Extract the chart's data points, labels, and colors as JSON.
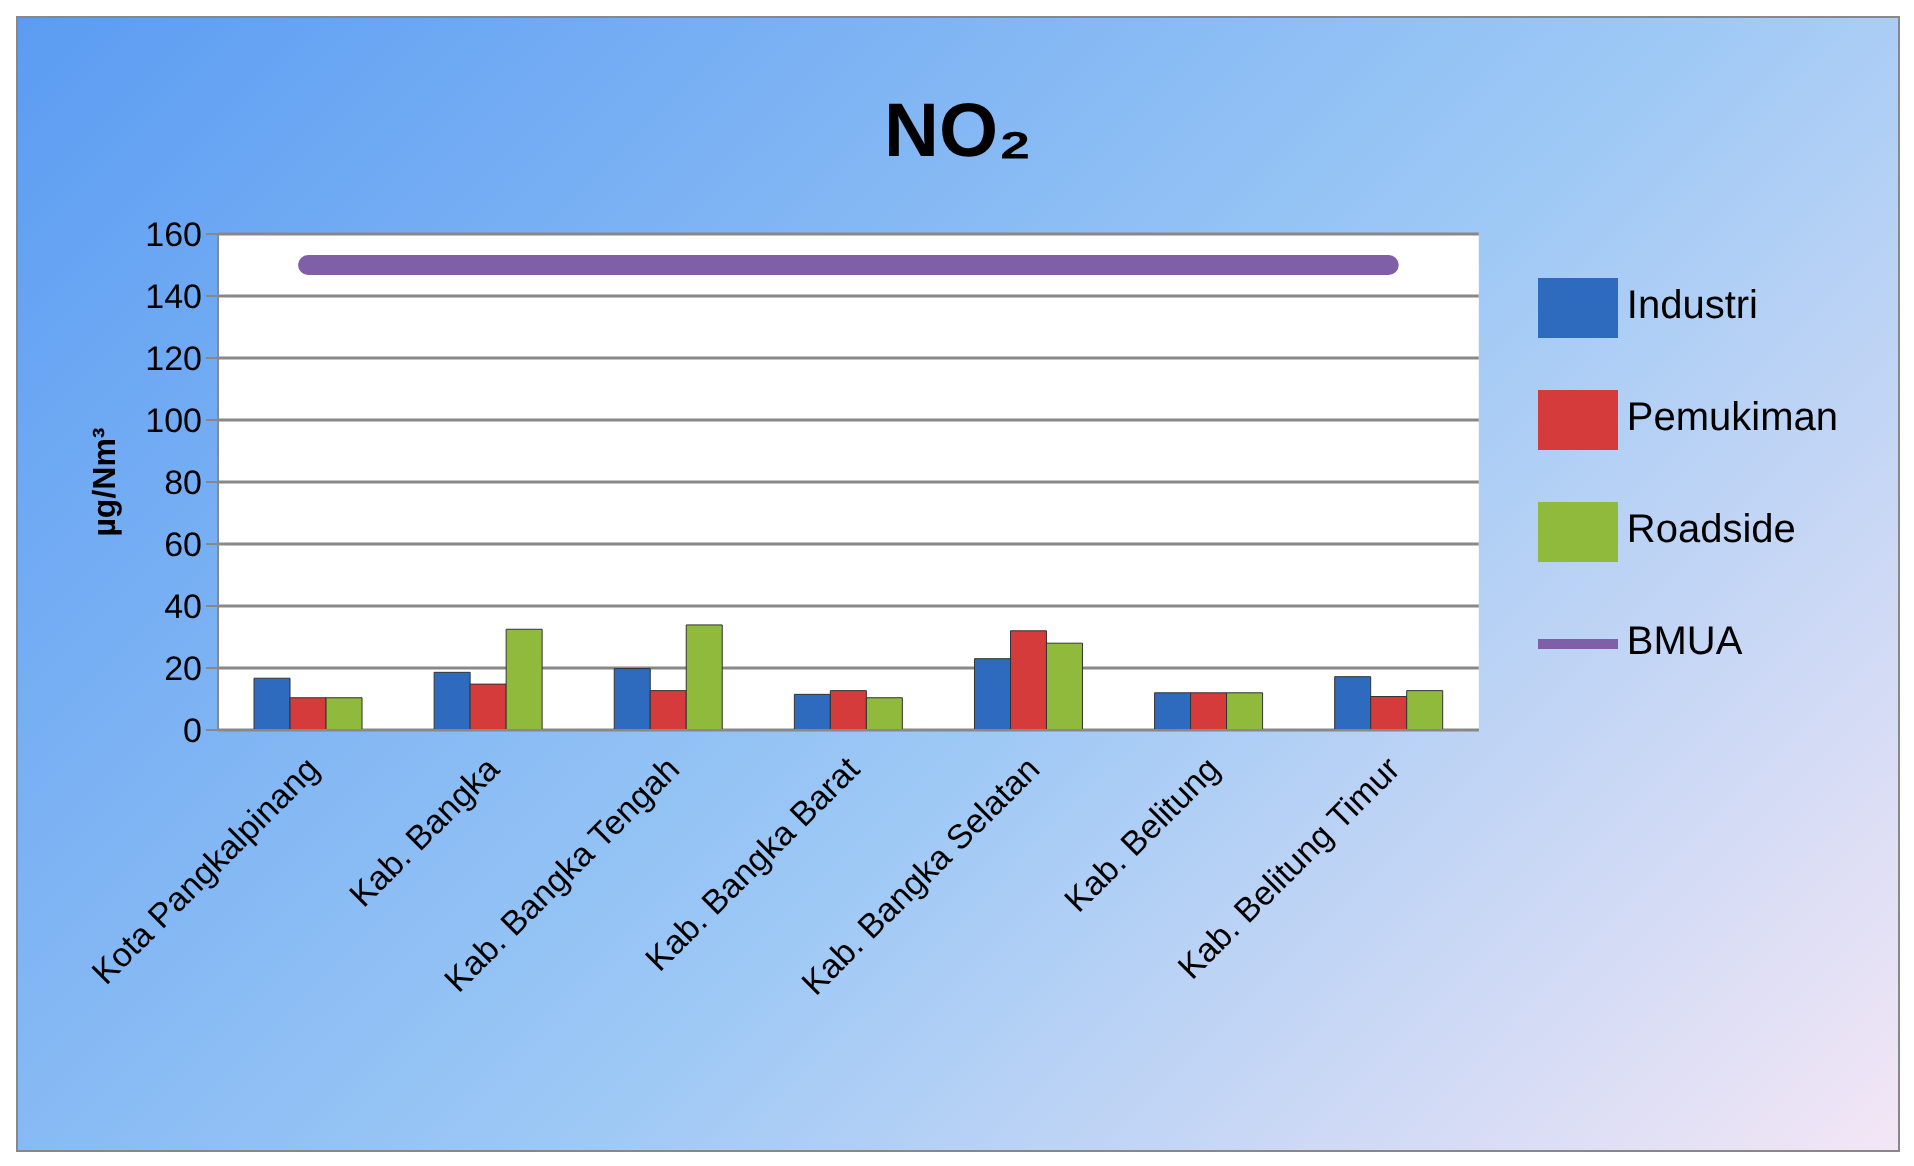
{
  "chart_data": {
    "type": "bar",
    "title": "NO₂",
    "ylabel": "µg/Nm³",
    "categories": [
      "Kota Pangkalpinang",
      "Kab. Bangka",
      "Kab. Bangka Tengah",
      "Kab. Bangka Barat",
      "Kab. Bangka Selatan",
      "Kab. Belitung",
      "Kab. Belitung Timur"
    ],
    "series": [
      {
        "name": "Industri",
        "color": "#2e6bbf",
        "values": [
          16.7,
          18.6,
          19.8,
          11.5,
          23,
          12,
          17.2
        ]
      },
      {
        "name": "Pemukiman",
        "color": "#d63b3b",
        "values": [
          10.4,
          14.8,
          12.7,
          12.7,
          32,
          12,
          10.8
        ]
      },
      {
        "name": "Roadside",
        "color": "#8fba3c",
        "values": [
          10.4,
          32.5,
          33.9,
          10.4,
          28,
          12,
          12.7
        ]
      },
      {
        "name": "BMUA",
        "type": "line",
        "color": "#7f5fa8",
        "values": [
          150,
          150,
          150,
          150,
          150,
          150,
          150
        ]
      }
    ],
    "ylim": [
      0,
      160
    ],
    "yticks": [
      0,
      20,
      40,
      60,
      80,
      100,
      120,
      140,
      160
    ],
    "grid": "y",
    "legend": "right"
  }
}
